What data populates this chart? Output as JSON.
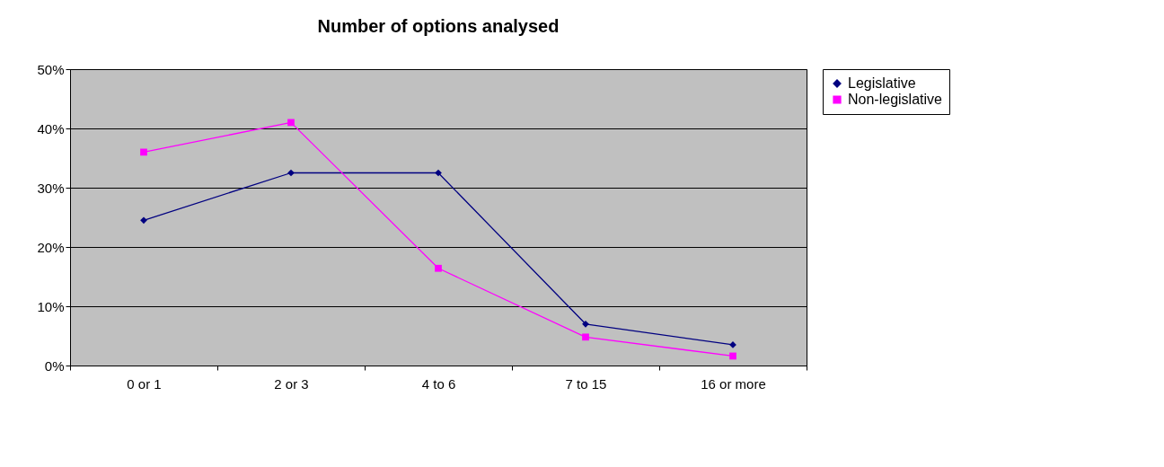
{
  "chart_data": {
    "type": "line",
    "title": "Number of options analysed",
    "categories": [
      "0 or 1",
      "2 or 3",
      "4 to 6",
      "7 to 15",
      "16 or more"
    ],
    "series": [
      {
        "name": "Legislative",
        "color": "#000080",
        "marker": "diamond",
        "values": [
          24.5,
          32.5,
          32.5,
          7.0,
          3.5
        ]
      },
      {
        "name": "Non-legislative",
        "color": "#ff00ff",
        "marker": "square",
        "values": [
          36,
          41,
          16.4,
          4.8,
          1.6
        ]
      }
    ],
    "ylim": [
      0,
      50
    ],
    "yticks": [
      {
        "value": 0,
        "label": "0%"
      },
      {
        "value": 10,
        "label": "10%"
      },
      {
        "value": 20,
        "label": "20%"
      },
      {
        "value": 30,
        "label": "30%"
      },
      {
        "value": 40,
        "label": "40%"
      },
      {
        "value": 50,
        "label": "50%"
      }
    ],
    "grid": "y",
    "legend": "right",
    "line_style": "solid"
  }
}
